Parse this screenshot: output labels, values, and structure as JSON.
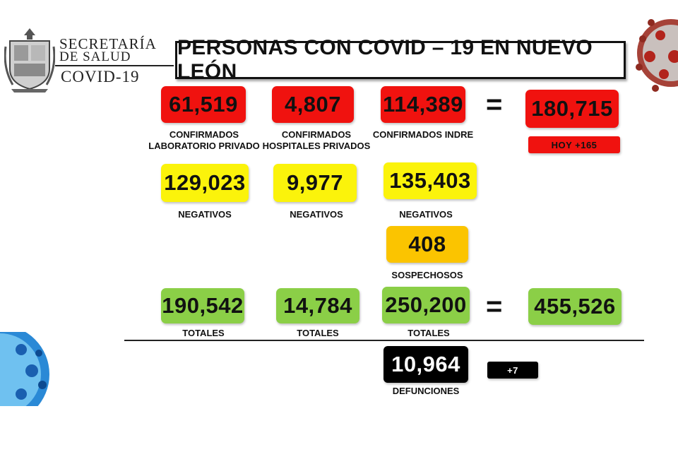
{
  "logo": {
    "line1": "SECRETARÍA",
    "line2": "DE SALUD",
    "line3": "COVID-19"
  },
  "title": "PERSONAS CON COVID – 19 EN NUEVO LEÓN",
  "confirmed": {
    "lab_privado": {
      "value": "61,519",
      "label_1": "CONFIRMADOS",
      "label_2": "LABORATORIO PRIVADO"
    },
    "hosp_privados": {
      "value": "4,807",
      "label_1": "CONFIRMADOS",
      "label_2": "HOSPITALES PRIVADOS"
    },
    "indre": {
      "value": "114,389",
      "label": "CONFIRMADOS INDRE"
    },
    "equals": "=",
    "total": {
      "value": "180,715",
      "today": "HOY +165"
    }
  },
  "negatives": {
    "lab_privado": {
      "value": "129,023",
      "label": "NEGATIVOS"
    },
    "hosp_privados": {
      "value": "9,977",
      "label": "NEGATIVOS"
    },
    "indre": {
      "value": "135,403",
      "label": "NEGATIVOS"
    }
  },
  "suspects": {
    "value": "408",
    "label": "SOSPECHOSOS"
  },
  "totals": {
    "lab_privado": {
      "value": "190,542",
      "label": "TOTALES"
    },
    "hosp_privados": {
      "value": "14,784",
      "label": "TOTALES"
    },
    "indre": {
      "value": "250,200",
      "label": "TOTALES"
    },
    "equals": "=",
    "grand_total": {
      "value": "455,526"
    }
  },
  "deaths": {
    "value": "10,964",
    "label": "DEFUNCIONES",
    "today": "+7"
  },
  "colors": {
    "red": "#f0120f",
    "yellow": "#fbf30b",
    "orange": "#fbc400",
    "green": "#8bcf47",
    "black": "#000000"
  }
}
